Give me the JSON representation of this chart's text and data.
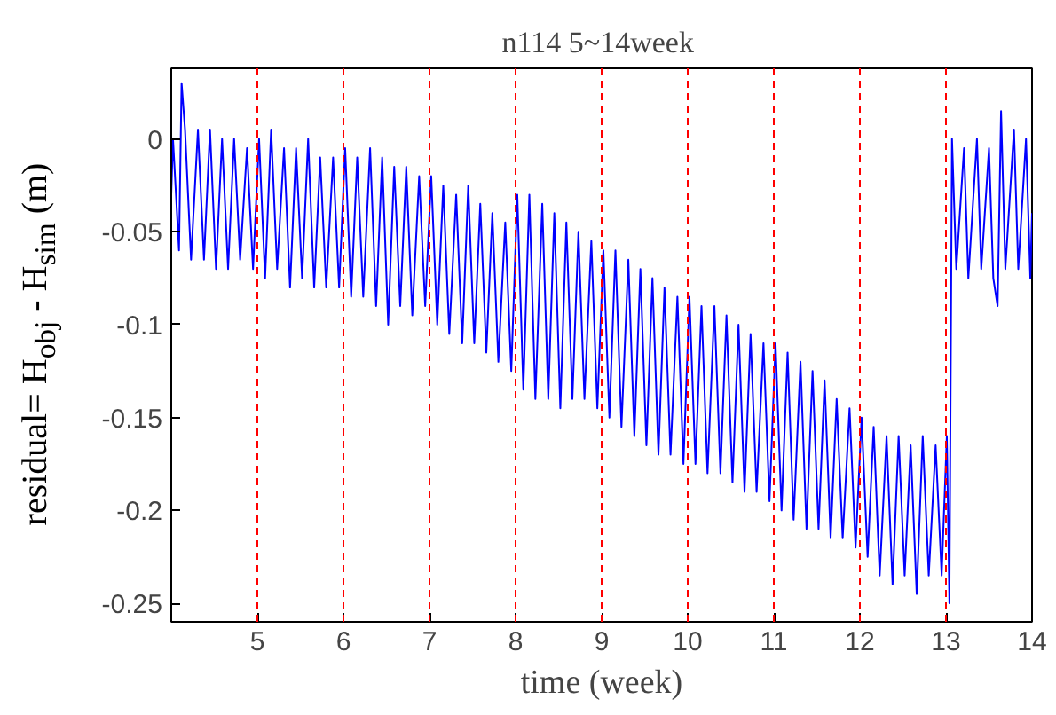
{
  "chart_data": {
    "type": "line",
    "title": "n114  5~14week",
    "xlabel": "time (week)",
    "ylabel": "residual= H$_{obj}$ - H$_{sim}$ (m)",
    "xlim": [
      4,
      14
    ],
    "ylim": [
      -0.26,
      0.038
    ],
    "xticks": [
      5,
      6,
      7,
      8,
      9,
      10,
      11,
      12,
      13,
      14
    ],
    "yticks": [
      {
        "value": 0,
        "label": "0"
      },
      {
        "value": -0.05,
        "label": "-0.05"
      },
      {
        "value": -0.1,
        "label": "-0.1"
      },
      {
        "value": -0.15,
        "label": "-0.15"
      },
      {
        "value": -0.2,
        "label": "-0.2"
      },
      {
        "value": -0.25,
        "label": "-0.25"
      }
    ],
    "grid": false,
    "marker": "none",
    "line_style": "solid",
    "ref_lines": [
      {
        "axis": "x",
        "value": 5,
        "color": "#ff0000",
        "line_style": "dashed"
      },
      {
        "axis": "x",
        "value": 6,
        "color": "#ff0000",
        "line_style": "dashed"
      },
      {
        "axis": "x",
        "value": 7,
        "color": "#ff0000",
        "line_style": "dashed"
      },
      {
        "axis": "x",
        "value": 8,
        "color": "#ff0000",
        "line_style": "dashed"
      },
      {
        "axis": "x",
        "value": 9,
        "color": "#ff0000",
        "line_style": "dashed"
      },
      {
        "axis": "x",
        "value": 10,
        "color": "#ff0000",
        "line_style": "dashed"
      },
      {
        "axis": "x",
        "value": 11,
        "color": "#ff0000",
        "line_style": "dashed"
      },
      {
        "axis": "x",
        "value": 12,
        "color": "#ff0000",
        "line_style": "dashed"
      },
      {
        "axis": "x",
        "value": 13,
        "color": "#ff0000",
        "line_style": "dashed"
      }
    ],
    "series": [
      {
        "color": "#0000ff",
        "x": [
          4.0,
          4.02,
          4.09,
          4.12,
          4.16,
          4.23,
          4.31,
          4.38,
          4.45,
          4.52,
          4.59,
          4.66,
          4.73,
          4.8,
          4.88,
          4.95,
          5.02,
          5.09,
          5.16,
          5.23,
          5.31,
          5.38,
          5.45,
          5.52,
          5.59,
          5.66,
          5.73,
          5.8,
          5.88,
          5.95,
          6.02,
          6.09,
          6.16,
          6.23,
          6.31,
          6.38,
          6.45,
          6.52,
          6.59,
          6.66,
          6.73,
          6.8,
          6.88,
          6.95,
          7.02,
          7.09,
          7.16,
          7.23,
          7.31,
          7.38,
          7.45,
          7.52,
          7.59,
          7.66,
          7.73,
          7.8,
          7.88,
          7.95,
          8.02,
          8.09,
          8.16,
          8.23,
          8.31,
          8.38,
          8.45,
          8.52,
          8.59,
          8.66,
          8.73,
          8.8,
          8.88,
          8.95,
          9.02,
          9.09,
          9.16,
          9.23,
          9.31,
          9.38,
          9.45,
          9.52,
          9.59,
          9.66,
          9.73,
          9.8,
          9.88,
          9.95,
          10.02,
          10.09,
          10.16,
          10.23,
          10.31,
          10.38,
          10.45,
          10.52,
          10.59,
          10.66,
          10.73,
          10.8,
          10.88,
          10.95,
          11.02,
          11.09,
          11.16,
          11.23,
          11.31,
          11.38,
          11.45,
          11.52,
          11.59,
          11.66,
          11.73,
          11.8,
          11.88,
          11.95,
          12.02,
          12.09,
          12.16,
          12.23,
          12.31,
          12.38,
          12.45,
          12.52,
          12.59,
          12.66,
          12.73,
          12.8,
          12.88,
          12.95,
          13.01,
          13.04,
          13.07,
          13.12,
          13.21,
          13.26,
          13.36,
          13.41,
          13.5,
          13.55,
          13.6,
          13.64,
          13.69,
          13.79,
          13.84,
          13.93,
          13.98,
          14.0
        ],
        "values": [
          -0.03,
          0.0,
          -0.06,
          0.03,
          0.005,
          -0.065,
          0.005,
          -0.065,
          0.005,
          -0.07,
          0.0,
          -0.07,
          0.0,
          -0.065,
          -0.005,
          -0.07,
          0.0,
          -0.075,
          0.005,
          -0.07,
          -0.005,
          -0.08,
          -0.005,
          -0.075,
          0.0,
          -0.08,
          -0.01,
          -0.08,
          -0.01,
          -0.08,
          -0.005,
          -0.085,
          -0.01,
          -0.085,
          -0.005,
          -0.09,
          -0.01,
          -0.1,
          -0.015,
          -0.09,
          -0.015,
          -0.095,
          -0.02,
          -0.09,
          -0.02,
          -0.1,
          -0.025,
          -0.105,
          -0.03,
          -0.11,
          -0.025,
          -0.11,
          -0.035,
          -0.115,
          -0.04,
          -0.12,
          -0.045,
          -0.125,
          -0.03,
          -0.135,
          -0.03,
          -0.14,
          -0.035,
          -0.14,
          -0.04,
          -0.145,
          -0.045,
          -0.14,
          -0.05,
          -0.14,
          -0.055,
          -0.145,
          -0.06,
          -0.15,
          -0.06,
          -0.155,
          -0.065,
          -0.16,
          -0.07,
          -0.165,
          -0.075,
          -0.17,
          -0.08,
          -0.17,
          -0.085,
          -0.175,
          -0.085,
          -0.175,
          -0.09,
          -0.18,
          -0.09,
          -0.18,
          -0.095,
          -0.185,
          -0.1,
          -0.19,
          -0.105,
          -0.19,
          -0.11,
          -0.195,
          -0.11,
          -0.2,
          -0.115,
          -0.205,
          -0.12,
          -0.21,
          -0.125,
          -0.21,
          -0.13,
          -0.215,
          -0.14,
          -0.215,
          -0.145,
          -0.22,
          -0.15,
          -0.225,
          -0.155,
          -0.235,
          -0.16,
          -0.24,
          -0.16,
          -0.235,
          -0.165,
          -0.245,
          -0.16,
          -0.235,
          -0.165,
          -0.235,
          -0.16,
          -0.25,
          0.0,
          -0.07,
          -0.005,
          -0.075,
          0.0,
          -0.07,
          -0.005,
          -0.075,
          -0.09,
          0.015,
          -0.07,
          0.005,
          -0.07,
          0.0,
          -0.075,
          -0.04
        ]
      }
    ]
  }
}
